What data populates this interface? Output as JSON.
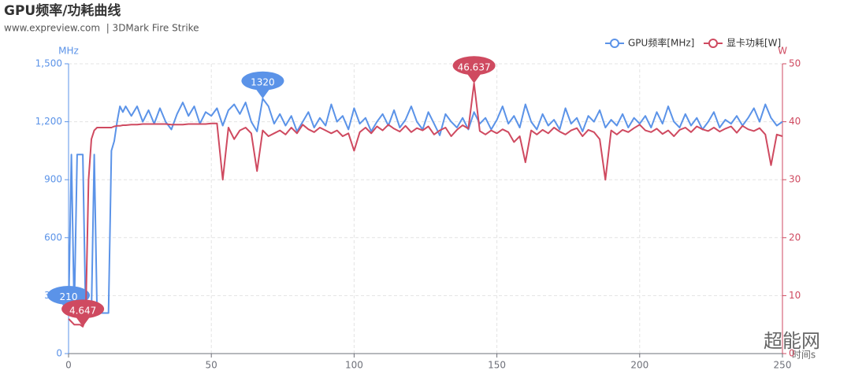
{
  "chart_data": {
    "type": "line",
    "title": "GPU频率/功耗曲线",
    "subtitle": "www.expreview.com  | 3DMark Fire Strike",
    "watermark": "超能网",
    "x_label": "时间s",
    "y_label": "MHz",
    "y2_label": "W",
    "x": [
      0,
      1,
      2,
      3,
      4,
      5,
      6,
      7,
      8,
      9,
      10,
      11,
      12,
      13,
      14,
      15,
      16,
      17,
      18,
      19,
      20,
      22,
      24,
      26,
      28,
      30,
      32,
      34,
      36,
      38,
      40,
      42,
      44,
      46,
      48,
      50,
      52,
      54,
      56,
      58,
      60,
      62,
      64,
      66,
      68,
      70,
      72,
      74,
      76,
      78,
      80,
      82,
      84,
      86,
      88,
      90,
      92,
      94,
      96,
      98,
      100,
      102,
      104,
      106,
      108,
      110,
      112,
      114,
      116,
      118,
      120,
      122,
      124,
      126,
      128,
      130,
      132,
      134,
      136,
      138,
      140,
      142,
      144,
      146,
      148,
      150,
      152,
      154,
      156,
      158,
      160,
      162,
      164,
      166,
      168,
      170,
      172,
      174,
      176,
      178,
      180,
      182,
      184,
      186,
      188,
      190,
      192,
      194,
      196,
      198,
      200,
      202,
      204,
      206,
      208,
      210,
      212,
      214,
      216,
      218,
      220,
      222,
      224,
      226,
      228,
      230,
      232,
      234,
      236,
      238,
      240,
      242,
      244,
      246,
      248,
      250
    ],
    "series": [
      {
        "name": "GPU频率[MHz]",
        "color": "#5b93e8",
        "axis": "y",
        "values": [
          210,
          1030,
          210,
          1030,
          1030,
          1030,
          210,
          210,
          210,
          1030,
          210,
          210,
          210,
          210,
          210,
          1050,
          1100,
          1200,
          1280,
          1250,
          1280,
          1230,
          1280,
          1200,
          1260,
          1190,
          1270,
          1200,
          1160,
          1240,
          1300,
          1230,
          1280,
          1190,
          1250,
          1230,
          1270,
          1180,
          1260,
          1290,
          1240,
          1300,
          1200,
          1150,
          1320,
          1280,
          1190,
          1240,
          1180,
          1230,
          1150,
          1200,
          1250,
          1170,
          1220,
          1180,
          1290,
          1200,
          1230,
          1160,
          1270,
          1190,
          1220,
          1150,
          1200,
          1240,
          1180,
          1260,
          1170,
          1210,
          1280,
          1200,
          1160,
          1250,
          1190,
          1130,
          1240,
          1200,
          1170,
          1220,
          1160,
          1250,
          1190,
          1220,
          1160,
          1210,
          1280,
          1190,
          1230,
          1170,
          1290,
          1200,
          1160,
          1240,
          1180,
          1210,
          1160,
          1270,
          1190,
          1220,
          1150,
          1230,
          1200,
          1260,
          1170,
          1210,
          1180,
          1240,
          1170,
          1220,
          1190,
          1230,
          1170,
          1250,
          1190,
          1280,
          1200,
          1170,
          1240,
          1180,
          1220,
          1160,
          1200,
          1250,
          1170,
          1210,
          1190,
          1230,
          1180,
          1220,
          1270,
          1200,
          1290,
          1220,
          1180,
          1200
        ],
        "mark_points": [
          {
            "x": 68,
            "value": 1320
          },
          {
            "x": 0,
            "value": 210
          }
        ]
      },
      {
        "name": "显卡功耗[W]",
        "color": "#cf4a60",
        "axis": "y2",
        "values": [
          6,
          5.5,
          5,
          5,
          5,
          4.647,
          6,
          30,
          37,
          38.5,
          39,
          39,
          39,
          39,
          39,
          39,
          39.2,
          39.3,
          39.3,
          39.4,
          39.4,
          39.5,
          39.5,
          39.6,
          39.6,
          39.6,
          39.6,
          39.6,
          39.5,
          39.5,
          39.5,
          39.6,
          39.6,
          39.6,
          39.6,
          39.7,
          39.7,
          30,
          39,
          37,
          38.5,
          39,
          38,
          31.5,
          38.5,
          37.5,
          38,
          38.5,
          37.8,
          39,
          38,
          39.5,
          38.7,
          38.2,
          39,
          38.5,
          38,
          38.5,
          37.5,
          38,
          35,
          38.2,
          39,
          38,
          39.2,
          38.5,
          39.5,
          38.8,
          38.3,
          39.3,
          38.2,
          38.9,
          38.5,
          39.2,
          37.8,
          38.5,
          39,
          37.5,
          38.6,
          39.4,
          38.8,
          46.637,
          38.4,
          37.8,
          38.5,
          38,
          38.7,
          38.2,
          36.5,
          37.5,
          33,
          38.5,
          37.8,
          38.6,
          38,
          39,
          38.3,
          37.8,
          38.5,
          38.9,
          37.5,
          38.6,
          38.2,
          37,
          30,
          38.5,
          37.8,
          38.6,
          38.2,
          38.9,
          39.5,
          38.5,
          38.2,
          38.8,
          37.9,
          38.5,
          37.5,
          38.6,
          39,
          38.2,
          39.2,
          38.7,
          38.4,
          39,
          38.3,
          38.8,
          39.2,
          38.1,
          39.3,
          38.7,
          38.4,
          38.9,
          37.8,
          32.5,
          37.8,
          37.5
        ],
        "mark_points": [
          {
            "x": 142,
            "value": 46.637
          },
          {
            "x": 5,
            "value": 4.647
          }
        ]
      }
    ],
    "xlim": [
      0,
      250
    ],
    "xticks": [
      0,
      50,
      100,
      150,
      200,
      250
    ],
    "ylim": [
      0,
      1500
    ],
    "yticks": [
      0,
      300,
      600,
      900,
      {
        "value": 1200,
        "label": "1,200"
      },
      {
        "value": 1500,
        "label": "1,500"
      }
    ],
    "y2lim": [
      0,
      50
    ],
    "y2ticks": [
      0,
      10,
      20,
      30,
      40,
      50
    ],
    "grid": true,
    "legend": "top-right"
  }
}
